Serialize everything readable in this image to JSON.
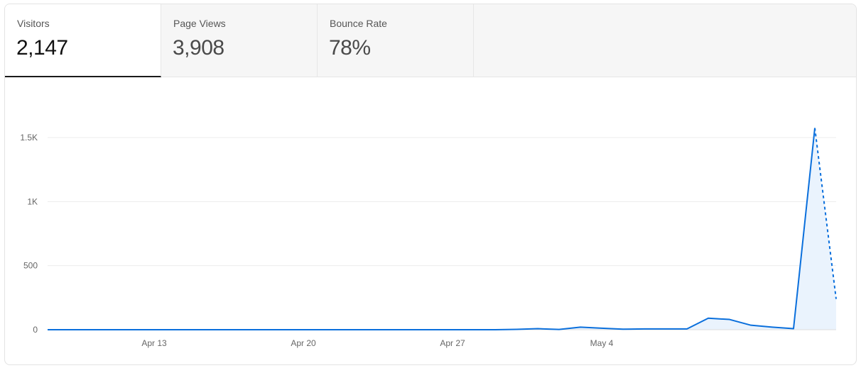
{
  "tabs": [
    {
      "label": "Visitors",
      "value": "2,147",
      "active": true
    },
    {
      "label": "Page Views",
      "value": "3,908",
      "active": false
    },
    {
      "label": "Bounce Rate",
      "value": "78%",
      "active": false
    }
  ],
  "colors": {
    "line": "#0a6fdc",
    "area": "#eaf3fd",
    "grid": "#ececec"
  },
  "chart_data": {
    "type": "area",
    "series": [
      {
        "values": [
          0,
          0,
          0,
          0,
          0,
          0,
          0,
          0,
          0,
          0,
          0,
          0,
          0,
          0,
          0,
          0,
          0,
          0,
          0,
          0,
          0,
          0,
          3,
          8,
          2,
          20,
          12,
          4,
          6,
          6,
          6,
          90,
          80,
          35,
          20,
          8,
          1575,
          240
        ],
        "dashed_from_index": 36
      }
    ],
    "x_start": "Apr 8",
    "x_ticks": [
      {
        "label": "Apr 13",
        "index": 5
      },
      {
        "label": "Apr 20",
        "index": 12
      },
      {
        "label": "Apr 27",
        "index": 19
      },
      {
        "label": "May 4",
        "index": 26
      }
    ],
    "y_ticks": [
      {
        "label": "0",
        "value": 0
      },
      {
        "label": "500",
        "value": 500
      },
      {
        "label": "1K",
        "value": 1000
      },
      {
        "label": "1.5K",
        "value": 1500
      }
    ],
    "ylim": [
      0,
      1500
    ],
    "grid": true
  }
}
